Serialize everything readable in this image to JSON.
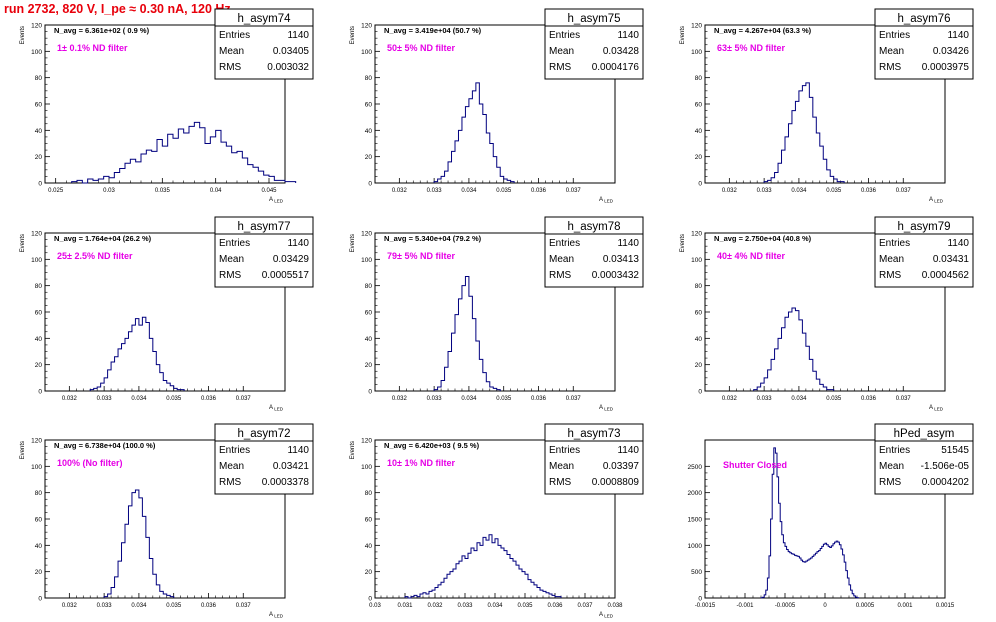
{
  "run_title": "run 2732,   820 V, I_pe ≈ 0.30 nA, 120 Hz",
  "colors": {
    "hist_line": "#00007f",
    "note": "#e600e6",
    "title": "#e8000b",
    "frame": "#000000"
  },
  "chart_data": [
    {
      "type": "histogram",
      "name": "h_asym74",
      "navg_label": "N_avg = 6.361e+02 ( 0.9 %)",
      "filter_label": "1± 0.1% ND filter",
      "ylabel": "Events",
      "xlabel": "A_{LED}",
      "xlim": [
        0.024,
        0.0465
      ],
      "ylim": [
        0,
        120
      ],
      "xticks": [
        "0.025",
        "0.03",
        "0.035",
        "0.04",
        "0.045"
      ],
      "xtick_values": [
        0.025,
        0.03,
        0.035,
        0.04,
        0.045
      ],
      "yticks": [
        "0",
        "20",
        "40",
        "60",
        "80",
        "100",
        "120"
      ],
      "stats": {
        "entries_label": "Entries",
        "entries": "1140",
        "mean_label": "Mean",
        "mean": "0.03405",
        "rms_label": "RMS",
        "rms": "0.003032"
      },
      "bin_start": 0.0265,
      "bin_width": 0.0005,
      "values": [
        1,
        2,
        0,
        3,
        2,
        3,
        5,
        4,
        8,
        11,
        15,
        18,
        16,
        22,
        25,
        24,
        33,
        28,
        37,
        34,
        41,
        38,
        43,
        46,
        42,
        30,
        35,
        40,
        31,
        28,
        23,
        24,
        19,
        14,
        12,
        9,
        6,
        5,
        2,
        2,
        1,
        1
      ]
    },
    {
      "type": "histogram",
      "name": "h_asym75",
      "navg_label": "N_avg = 3.419e+04 (50.7 %)",
      "filter_label": "50± 5% ND filter",
      "ylabel": "Events",
      "xlabel": "A_{LED}",
      "xlim": [
        0.0313,
        0.0382
      ],
      "ylim": [
        0,
        120
      ],
      "xticks": [
        "0.032",
        "0.033",
        "0.034",
        "0.035",
        "0.036",
        "0.037"
      ],
      "xtick_values": [
        0.032,
        0.033,
        0.034,
        0.035,
        0.036,
        0.037
      ],
      "yticks": [
        "0",
        "20",
        "40",
        "60",
        "80",
        "100",
        "120"
      ],
      "stats": {
        "entries_label": "Entries",
        "entries": "1140",
        "mean_label": "Mean",
        "mean": "0.03428",
        "rms_label": "RMS",
        "rms": "0.0004176"
      },
      "bin_start": 0.033,
      "bin_width": 0.0001,
      "values": [
        1,
        3,
        5,
        9,
        16,
        24,
        32,
        40,
        50,
        58,
        64,
        70,
        76,
        60,
        52,
        38,
        30,
        20,
        12,
        5,
        3,
        2,
        1
      ]
    },
    {
      "type": "histogram",
      "name": "h_asym76",
      "navg_label": "N_avg = 4.267e+04 (63.3 %)",
      "filter_label": "63± 5% ND filter",
      "ylabel": "Events",
      "xlabel": "A_{LED}",
      "xlim": [
        0.0313,
        0.0382
      ],
      "ylim": [
        0,
        120
      ],
      "xticks": [
        "0.032",
        "0.033",
        "0.034",
        "0.035",
        "0.036",
        "0.037"
      ],
      "xtick_values": [
        0.032,
        0.033,
        0.034,
        0.035,
        0.036,
        0.037
      ],
      "yticks": [
        "0",
        "20",
        "40",
        "60",
        "80",
        "100",
        "120"
      ],
      "stats": {
        "entries_label": "Entries",
        "entries": "1140",
        "mean_label": "Mean",
        "mean": "0.03426",
        "rms_label": "RMS",
        "rms": "0.0003975"
      },
      "bin_start": 0.033,
      "bin_width": 0.0001,
      "values": [
        1,
        2,
        4,
        8,
        15,
        25,
        35,
        45,
        55,
        62,
        70,
        74,
        76,
        65,
        50,
        38,
        28,
        18,
        10,
        5,
        3,
        1,
        1
      ]
    },
    {
      "type": "histogram",
      "name": "h_asym77",
      "navg_label": "N_avg = 1.764e+04 (26.2 %)",
      "filter_label": "25± 2.5% ND filter",
      "ylabel": "Events",
      "xlabel": "A_{LED}",
      "xlim": [
        0.0313,
        0.0382
      ],
      "ylim": [
        0,
        120
      ],
      "xticks": [
        "0.032",
        "0.033",
        "0.034",
        "0.035",
        "0.036",
        "0.037"
      ],
      "xtick_values": [
        0.032,
        0.033,
        0.034,
        0.035,
        0.036,
        0.037
      ],
      "yticks": [
        "0",
        "20",
        "40",
        "60",
        "80",
        "100",
        "120"
      ],
      "stats": {
        "entries_label": "Entries",
        "entries": "1140",
        "mean_label": "Mean",
        "mean": "0.03429",
        "rms_label": "RMS",
        "rms": "0.0005517"
      },
      "bin_start": 0.0326,
      "bin_width": 0.0001,
      "values": [
        1,
        2,
        3,
        6,
        10,
        16,
        22,
        26,
        32,
        36,
        40,
        45,
        50,
        55,
        50,
        56,
        52,
        40,
        30,
        20,
        14,
        8,
        6,
        4,
        2,
        1,
        1
      ]
    },
    {
      "type": "histogram",
      "name": "h_asym78",
      "navg_label": "N_avg = 5.340e+04 (79.2 %)",
      "filter_label": "79± 5% ND filter",
      "ylabel": "Events",
      "xlabel": "A_{LED}",
      "xlim": [
        0.0313,
        0.0382
      ],
      "ylim": [
        0,
        120
      ],
      "xticks": [
        "0.032",
        "0.033",
        "0.034",
        "0.035",
        "0.036",
        "0.037"
      ],
      "xtick_values": [
        0.032,
        0.033,
        0.034,
        0.035,
        0.036,
        0.037
      ],
      "yticks": [
        "0",
        "20",
        "40",
        "60",
        "80",
        "100",
        "120"
      ],
      "stats": {
        "entries_label": "Entries",
        "entries": "1140",
        "mean_label": "Mean",
        "mean": "0.03413",
        "rms_label": "RMS",
        "rms": "0.0003432"
      },
      "bin_start": 0.033,
      "bin_width": 0.0001,
      "values": [
        1,
        3,
        8,
        18,
        30,
        44,
        58,
        70,
        80,
        87,
        72,
        55,
        38,
        24,
        14,
        7,
        3,
        2,
        1
      ]
    },
    {
      "type": "histogram",
      "name": "h_asym79",
      "navg_label": "N_avg = 2.750e+04 (40.8 %)",
      "filter_label": "40± 4% ND filter",
      "ylabel": "Events",
      "xlabel": "A_{LED}",
      "xlim": [
        0.0313,
        0.0382
      ],
      "ylim": [
        0,
        120
      ],
      "xticks": [
        "0.032",
        "0.033",
        "0.034",
        "0.035",
        "0.036",
        "0.037"
      ],
      "xtick_values": [
        0.032,
        0.033,
        0.034,
        0.035,
        0.036,
        0.037
      ],
      "yticks": [
        "0",
        "20",
        "40",
        "60",
        "80",
        "100",
        "120"
      ],
      "stats": {
        "entries_label": "Entries",
        "entries": "1140",
        "mean_label": "Mean",
        "mean": "0.03431",
        "rms_label": "RMS",
        "rms": "0.0004562"
      },
      "bin_start": 0.0327,
      "bin_width": 0.0001,
      "values": [
        1,
        3,
        6,
        10,
        16,
        24,
        32,
        40,
        48,
        56,
        60,
        63,
        61,
        54,
        44,
        34,
        24,
        15,
        9,
        5,
        3,
        1,
        1
      ]
    },
    {
      "type": "histogram",
      "name": "h_asym72",
      "navg_label": "N_avg = 6.738e+04 (100.0 %)",
      "filter_label": "100% (No filter)",
      "ylabel": "Events",
      "xlabel": "A_{LED}",
      "xlim": [
        0.0313,
        0.0382
      ],
      "ylim": [
        0,
        120
      ],
      "xticks": [
        "0.032",
        "0.033",
        "0.034",
        "0.035",
        "0.036",
        "0.037"
      ],
      "xtick_values": [
        0.032,
        0.033,
        0.034,
        0.035,
        0.036,
        0.037
      ],
      "yticks": [
        "0",
        "20",
        "40",
        "60",
        "80",
        "100",
        "120"
      ],
      "stats": {
        "entries_label": "Entries",
        "entries": "1140",
        "mean_label": "Mean",
        "mean": "0.03421",
        "rms_label": "RMS",
        "rms": "0.0003378"
      },
      "bin_start": 0.033,
      "bin_width": 0.0001,
      "values": [
        1,
        3,
        8,
        16,
        28,
        42,
        56,
        70,
        80,
        82,
        76,
        62,
        46,
        30,
        18,
        10,
        5,
        3,
        2,
        1
      ]
    },
    {
      "type": "histogram",
      "name": "h_asym73",
      "navg_label": "N_avg = 6.420e+03 ( 9.5 %)",
      "filter_label": "10± 1% ND filter",
      "ylabel": "Events",
      "xlabel": "A_{LED}",
      "xlim": [
        0.03,
        0.038
      ],
      "ylim": [
        0,
        120
      ],
      "xticks": [
        "0.03",
        "0.031",
        "0.032",
        "0.033",
        "0.034",
        "0.035",
        "0.036",
        "0.037",
        "0.038"
      ],
      "xtick_values": [
        0.03,
        0.031,
        0.032,
        0.033,
        0.034,
        0.035,
        0.036,
        0.037,
        0.038
      ],
      "yticks": [
        "0",
        "20",
        "40",
        "60",
        "80",
        "100",
        "120"
      ],
      "stats": {
        "entries_label": "Entries",
        "entries": "1140",
        "mean_label": "Mean",
        "mean": "0.03397",
        "rms_label": "RMS",
        "rms": "0.0008809"
      },
      "bin_start": 0.031,
      "bin_width": 0.0001,
      "values": [
        1,
        0,
        1,
        2,
        1,
        3,
        4,
        3,
        5,
        6,
        8,
        10,
        12,
        15,
        18,
        20,
        22,
        26,
        28,
        32,
        30,
        34,
        38,
        36,
        42,
        40,
        46,
        44,
        48,
        42,
        45,
        40,
        38,
        36,
        33,
        30,
        28,
        25,
        22,
        20,
        18,
        14,
        12,
        10,
        8,
        6,
        5,
        4,
        3,
        2,
        1,
        1
      ]
    },
    {
      "type": "histogram",
      "name": "hPed_asym",
      "navg_label": "",
      "filter_label": "Shutter Closed",
      "ylabel": "",
      "xlabel": "",
      "xlim": [
        -0.0015,
        0.0015
      ],
      "ylim": [
        0,
        3000
      ],
      "xticks": [
        "-0.0015",
        "-0.001",
        "-0.0005",
        "0",
        "0.0005",
        "0.001",
        "0.0015"
      ],
      "xtick_values": [
        -0.0015,
        -0.001,
        -0.0005,
        0,
        0.0005,
        0.001,
        0.0015
      ],
      "yticks": [
        "0",
        "500",
        "1000",
        "1500",
        "2000",
        "2500"
      ],
      "stats": {
        "entries_label": "Entries",
        "entries": "51545",
        "mean_label": "Mean",
        "mean": "-1.506e-05",
        "rms_label": "RMS",
        "rms": "0.0004202"
      },
      "bin_start": -0.0008,
      "bin_width": 2e-05,
      "values": [
        5,
        15,
        60,
        150,
        380,
        800,
        1500,
        2350,
        2850,
        2750,
        2300,
        1800,
        1450,
        1200,
        1050,
        980,
        920,
        880,
        860,
        840,
        830,
        810,
        800,
        790,
        760,
        720,
        690,
        680,
        700,
        720,
        740,
        760,
        790,
        820,
        850,
        880,
        900,
        940,
        980,
        1020,
        1040,
        1010,
        980,
        960,
        990,
        1030,
        1060,
        1080,
        1060,
        1010,
        930,
        820,
        680,
        520,
        380,
        250,
        150,
        80,
        40,
        15,
        5
      ]
    }
  ]
}
